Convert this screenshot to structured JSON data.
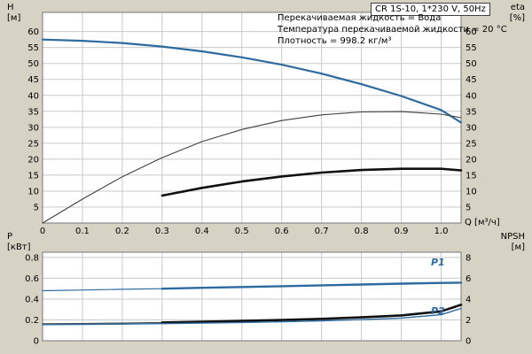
{
  "window": {
    "background": "#d6d2c4",
    "accent_blue": "#2c6a9f"
  },
  "title_box": {
    "label": "CR 1S-10, 1*230 V, 50Hz"
  },
  "info_lines": [
    "Перекачиваемая жидкость = Вода",
    "Температура перекачиваемой жидкости = 20 °C",
    "Плотность = 998.2 кг/м³"
  ],
  "axis_labels": {
    "h": [
      "H",
      "[м]"
    ],
    "eta": [
      "eta",
      "[%]"
    ],
    "p": [
      "P",
      "[кВт]"
    ],
    "npsh": [
      "NPSH",
      "[м]"
    ],
    "q": "Q [м³/ч]"
  },
  "curve_labels": {
    "p1": "P1",
    "p2": "P2"
  },
  "chart_data": [
    {
      "type": "line",
      "title": "CR 1S-10, 1*230 V, 50Hz",
      "x_axis": {
        "label": "Q [м³/ч]",
        "min": 0,
        "max": 1.05,
        "ticks": [
          0,
          0.1,
          0.2,
          0.3,
          0.4,
          0.5,
          0.6,
          0.7,
          0.8,
          0.9,
          1.0
        ],
        "tick_labels": [
          "0",
          "0.1",
          "0.2",
          "0.3",
          "0.4",
          "0.5",
          "0.6",
          "0.7",
          "0.8",
          "0.9",
          "1.0"
        ],
        "show_tick_labels": true
      },
      "y_left": {
        "label": "H [м]",
        "min": 0,
        "max": 66,
        "ticks": [
          0,
          5,
          10,
          15,
          20,
          25,
          30,
          35,
          40,
          45,
          50,
          55,
          60
        ],
        "tick_labels": [
          "0",
          "5",
          "10",
          "15",
          "20",
          "25",
          "30",
          "35",
          "40",
          "45",
          "50",
          "55",
          "60"
        ],
        "skip_zero_label": true
      },
      "y_right": {
        "label": "eta [%]",
        "min": 0,
        "max": 66,
        "ticks": [
          0,
          5,
          10,
          15,
          20,
          25,
          30,
          35,
          40,
          45,
          50,
          55,
          60
        ],
        "tick_labels": [
          "0",
          "5",
          "10",
          "15",
          "20",
          "25",
          "30",
          "35",
          "40",
          "45",
          "50",
          "55",
          "60"
        ],
        "skip_zero_label": true
      },
      "grid": true,
      "series": [
        {
          "name": "H head curve",
          "axis": "left",
          "color": "#2c6a9f",
          "width": 2.2,
          "x": [
            0,
            0.1,
            0.2,
            0.3,
            0.4,
            0.5,
            0.6,
            0.7,
            0.8,
            0.9,
            1.0,
            1.05
          ],
          "y": [
            57.5,
            57.1,
            56.4,
            55.3,
            53.8,
            51.9,
            49.6,
            46.8,
            43.5,
            39.8,
            35.4,
            31.5
          ]
        },
        {
          "name": "eta pump",
          "axis": "right",
          "color": "#3f3f3f",
          "width": 1.1,
          "x": [
            0,
            0.1,
            0.2,
            0.3,
            0.4,
            0.5,
            0.6,
            0.7,
            0.8,
            0.9,
            1.0,
            1.05
          ],
          "y": [
            0,
            7.5,
            14.5,
            20.5,
            25.5,
            29.3,
            32.1,
            33.9,
            34.8,
            34.9,
            34.1,
            33.0
          ]
        },
        {
          "name": "eta duty range",
          "axis": "right",
          "color": "#101010",
          "width": 2.6,
          "x": [
            0.3,
            0.4,
            0.5,
            0.6,
            0.7,
            0.8,
            0.9,
            1.0,
            1.05
          ],
          "y": [
            8.6,
            11.0,
            13.0,
            14.6,
            15.8,
            16.6,
            17.0,
            17.0,
            16.5
          ]
        }
      ]
    },
    {
      "type": "line",
      "x_axis": {
        "min": 0,
        "max": 1.05,
        "ticks": [
          0,
          0.1,
          0.2,
          0.3,
          0.4,
          0.5,
          0.6,
          0.7,
          0.8,
          0.9,
          1.0
        ],
        "tick_labels": [],
        "show_tick_labels": false
      },
      "y_left": {
        "label": "P [кВт]",
        "min": 0,
        "max": 0.85,
        "ticks": [
          0,
          0.2,
          0.4,
          0.6,
          0.8
        ],
        "tick_labels": [
          "0",
          "0.2",
          "0.4",
          "0.6",
          "0.8"
        ],
        "skip_zero_label": false
      },
      "y_right": {
        "label": "NPSH [м]",
        "min": 0,
        "max": 8.5,
        "ticks": [
          0,
          2,
          4,
          6,
          8
        ],
        "tick_labels": [
          "0",
          "2",
          "4",
          "6",
          "8"
        ],
        "skip_zero_label": false
      },
      "grid": true,
      "series": [
        {
          "name": "P1 input power",
          "axis": "left",
          "color": "#2c6a9f",
          "width": 1.2,
          "x": [
            0,
            0.1,
            0.2,
            0.3,
            0.4,
            0.5,
            0.6,
            0.7,
            0.8,
            0.9,
            1.0,
            1.05
          ],
          "y": [
            0.48,
            0.487,
            0.494,
            0.5,
            0.508,
            0.516,
            0.524,
            0.532,
            0.54,
            0.548,
            0.555,
            0.558
          ]
        },
        {
          "name": "P1 duty range",
          "axis": "left",
          "color": "#2c6a9f",
          "width": 2.4,
          "x": [
            0.3,
            0.4,
            0.5,
            0.6,
            0.7,
            0.8,
            0.9,
            1.0,
            1.05
          ],
          "y": [
            0.5,
            0.508,
            0.516,
            0.524,
            0.532,
            0.54,
            0.548,
            0.555,
            0.558
          ]
        },
        {
          "name": "P2 shaft power",
          "axis": "left",
          "color": "#3f3f3f",
          "width": 1.1,
          "x": [
            0,
            0.1,
            0.2,
            0.3,
            0.4,
            0.5,
            0.6,
            0.7,
            0.8,
            0.9,
            1.0,
            1.05
          ],
          "y": [
            0.163,
            0.166,
            0.17,
            0.175,
            0.182,
            0.19,
            0.199,
            0.21,
            0.224,
            0.243,
            0.282,
            0.345
          ]
        },
        {
          "name": "P2 duty range",
          "axis": "left",
          "color": "#101010",
          "width": 2.6,
          "x": [
            0.3,
            0.4,
            0.5,
            0.6,
            0.7,
            0.8,
            0.9,
            1.0,
            1.05
          ],
          "y": [
            0.175,
            0.182,
            0.19,
            0.199,
            0.21,
            0.224,
            0.243,
            0.282,
            0.345
          ]
        },
        {
          "name": "NPSH",
          "axis": "right",
          "color": "#2c6a9f",
          "width": 1.4,
          "x": [
            0,
            0.1,
            0.2,
            0.3,
            0.4,
            0.5,
            0.6,
            0.7,
            0.8,
            0.9,
            1.0,
            1.05
          ],
          "y": [
            1.55,
            1.57,
            1.6,
            1.64,
            1.69,
            1.75,
            1.82,
            1.91,
            2.02,
            2.18,
            2.5,
            3.1
          ]
        }
      ]
    }
  ]
}
